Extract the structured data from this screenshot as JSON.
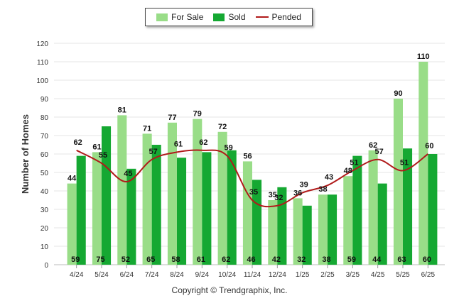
{
  "chart_data": {
    "type": "bar",
    "categories": [
      "4/24",
      "5/24",
      "6/24",
      "7/24",
      "8/24",
      "9/24",
      "10/24",
      "11/24",
      "12/24",
      "1/25",
      "2/25",
      "3/25",
      "4/25",
      "5/25",
      "6/25"
    ],
    "series": [
      {
        "name": "For Sale",
        "type": "bar",
        "color": "#99dd88",
        "values": [
          44,
          61,
          81,
          71,
          77,
          79,
          72,
          56,
          35,
          36,
          38,
          48,
          62,
          90,
          110
        ]
      },
      {
        "name": "Sold",
        "type": "bar",
        "color": "#15a832",
        "values": [
          59,
          75,
          52,
          65,
          58,
          61,
          62,
          46,
          42,
          32,
          38,
          59,
          44,
          63,
          60
        ]
      },
      {
        "name": "Pended",
        "type": "line",
        "color": "#b01a1a",
        "values": [
          62,
          55,
          45,
          57,
          61,
          62,
          59,
          35,
          32,
          39,
          43,
          51,
          57,
          51,
          60
        ]
      }
    ],
    "ylabel": "Number of Homes",
    "xlabel": "",
    "ylim": [
      0,
      120
    ],
    "yticks": [
      0,
      10,
      20,
      30,
      40,
      50,
      60,
      70,
      80,
      90,
      100,
      110,
      120
    ],
    "grid": true,
    "legend_position": "top-center"
  },
  "legend": {
    "for_sale": "For Sale",
    "sold": "Sold",
    "pended": "Pended"
  },
  "footer": {
    "copyright": "Copyright © Trendgraphix, Inc."
  }
}
